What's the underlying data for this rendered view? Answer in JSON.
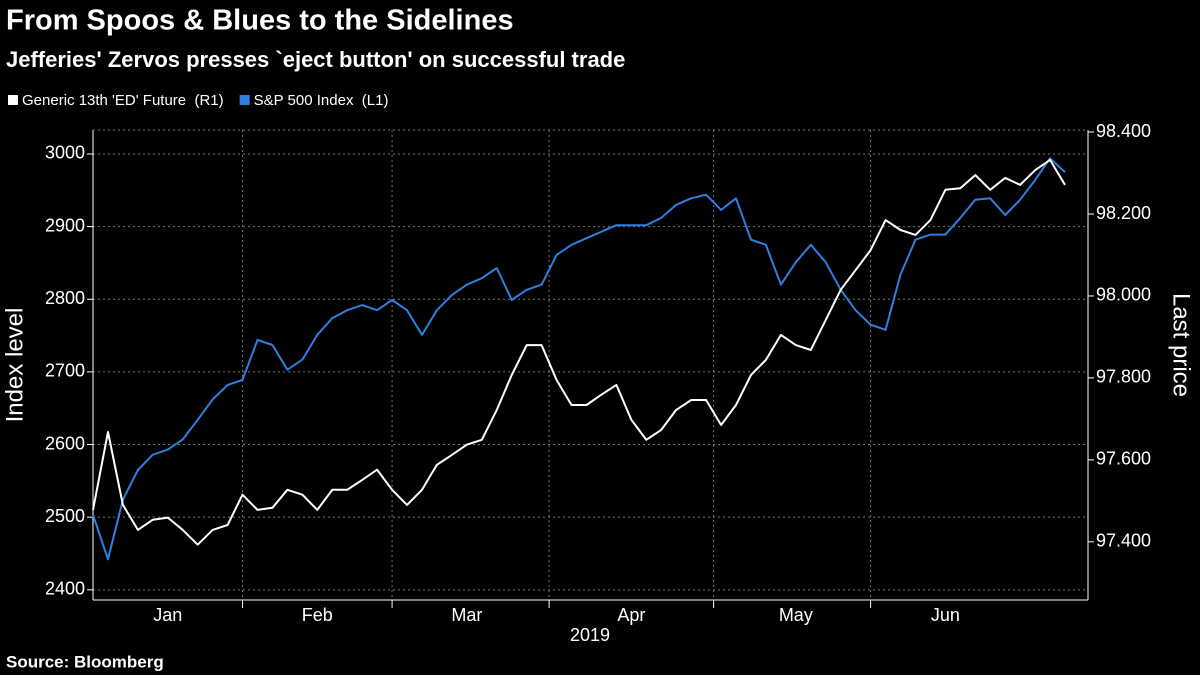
{
  "chart_data": {
    "type": "line",
    "title": "From Spoos & Blues to the Sidelines",
    "subtitle": "Jefferies' Zervos presses `eject button' on successful trade",
    "x_label": "2019",
    "y_label": "Index level",
    "y2_label": "Last price",
    "source": "Source: Bloomberg",
    "categories": [
      null,
      null,
      null,
      null,
      null,
      "Jan",
      null,
      null,
      null,
      null,
      null,
      null,
      null,
      null,
      null,
      "Feb",
      null,
      null,
      null,
      null,
      null,
      null,
      null,
      null,
      null,
      "Mar",
      null,
      null,
      null,
      null,
      null,
      null,
      null,
      null,
      null,
      null,
      "Apr",
      null,
      null,
      null,
      null,
      null,
      null,
      null,
      null,
      null,
      null,
      "May",
      null,
      null,
      null,
      null,
      null,
      null,
      null,
      null,
      null,
      "Jun",
      null,
      null,
      null,
      null,
      null,
      null,
      null,
      null
    ],
    "series": [
      {
        "name": "Generic 13th 'ED' Future  (R1)",
        "color": "#ffffff",
        "axis": "y2",
        "values": [
          97.478,
          97.668,
          97.49,
          97.429,
          97.454,
          97.459,
          97.429,
          97.393,
          97.429,
          97.441,
          97.515,
          97.478,
          97.483,
          97.527,
          97.515,
          97.478,
          97.527,
          97.527,
          97.551,
          97.576,
          97.527,
          97.49,
          97.527,
          97.588,
          97.612,
          97.637,
          97.649,
          97.722,
          97.807,
          97.88,
          97.88,
          97.795,
          97.734,
          97.734,
          97.759,
          97.783,
          97.698,
          97.649,
          97.673,
          97.722,
          97.746,
          97.746,
          97.685,
          97.734,
          97.807,
          97.844,
          97.905,
          97.88,
          97.868,
          97.941,
          98.015,
          98.063,
          98.112,
          98.185,
          98.161,
          98.149,
          98.185,
          98.259,
          98.263,
          98.295,
          98.259,
          98.288,
          98.271,
          98.307,
          98.332,
          98.271
        ]
      },
      {
        "name": "S&P 500 Index  (L1)",
        "color": "#2f7fe0",
        "axis": "y",
        "values": [
          2503,
          2442,
          2524,
          2565,
          2586,
          2593,
          2607,
          2634,
          2662,
          2682,
          2689,
          2744,
          2737,
          2703,
          2717,
          2751,
          2774,
          2785,
          2792,
          2785,
          2799,
          2785,
          2751,
          2785,
          2806,
          2820,
          2829,
          2843,
          2799,
          2813,
          2820,
          2861,
          2875,
          2884,
          2893,
          2902,
          2902,
          2902,
          2912,
          2930,
          2939,
          2944,
          2923,
          2939,
          2882,
          2875,
          2820,
          2851,
          2875,
          2851,
          2813,
          2785,
          2765,
          2758,
          2834,
          2882,
          2889,
          2889,
          2912,
          2937,
          2939,
          2916,
          2937,
          2964,
          2994,
          2975
        ]
      }
    ],
    "ylim": [
      2386,
      3033
    ],
    "yticks": [
      2400,
      2500,
      2600,
      2700,
      2800,
      2900,
      3000
    ],
    "y2lim": [
      97.258,
      98.405
    ],
    "y2ticks": [
      {
        "value": 97.4,
        "label": "97.400"
      },
      {
        "value": 97.6,
        "label": "97.600"
      },
      {
        "value": 97.8,
        "label": "97.800"
      },
      {
        "value": 98.0,
        "label": "98.000"
      },
      {
        "value": 98.2,
        "label": "98.200"
      },
      {
        "value": 98.4,
        "label": "98.400"
      }
    ],
    "grid": true,
    "legend": "top-left"
  }
}
